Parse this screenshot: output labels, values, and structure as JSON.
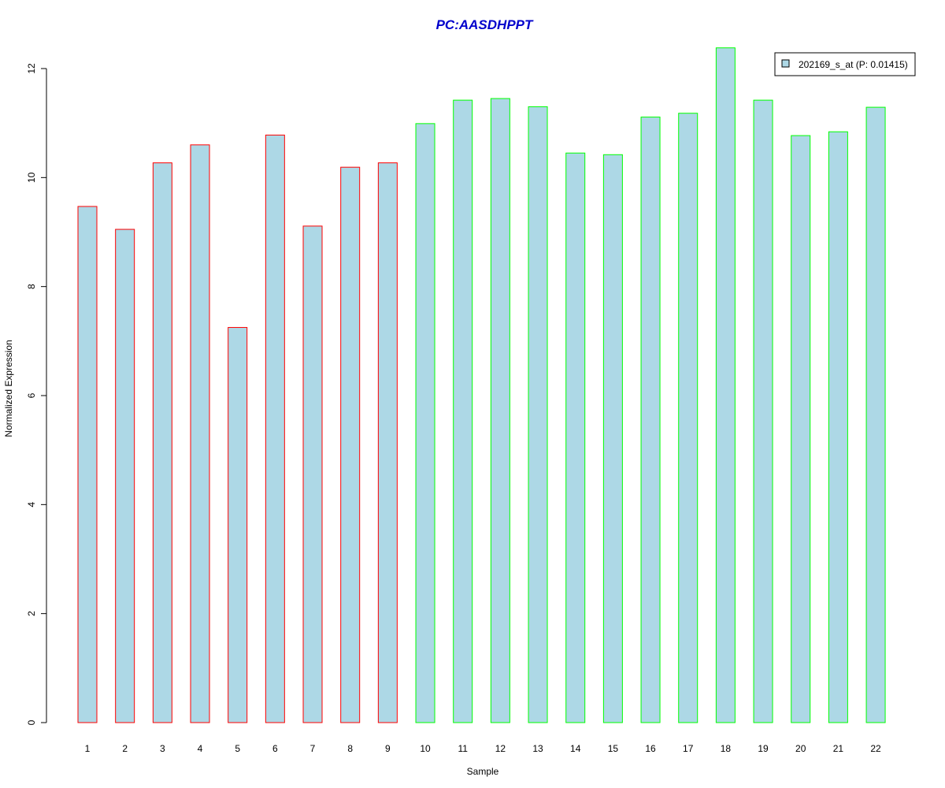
{
  "chart_data": {
    "type": "bar",
    "title": "PC:AASDHPPT",
    "xlabel": "Sample",
    "ylabel": "Normalized Expression",
    "categories": [
      "1",
      "2",
      "3",
      "4",
      "5",
      "6",
      "7",
      "8",
      "9",
      "10",
      "11",
      "12",
      "13",
      "14",
      "15",
      "16",
      "17",
      "18",
      "19",
      "20",
      "21",
      "22"
    ],
    "series": [
      {
        "name": "202169_s_at (P: 0.01415)",
        "values": [
          9.47,
          9.05,
          10.27,
          10.6,
          7.25,
          10.78,
          9.11,
          10.19,
          10.27,
          10.99,
          11.42,
          11.45,
          11.3,
          10.45,
          10.42,
          11.11,
          11.18,
          12.38,
          11.42,
          10.77,
          10.84,
          11.29
        ]
      }
    ],
    "group_border_colors": [
      "#ff0000",
      "#ff0000",
      "#ff0000",
      "#ff0000",
      "#ff0000",
      "#ff0000",
      "#ff0000",
      "#ff0000",
      "#ff0000",
      "#00ff00",
      "#00ff00",
      "#00ff00",
      "#00ff00",
      "#00ff00",
      "#00ff00",
      "#00ff00",
      "#00ff00",
      "#00ff00",
      "#00ff00",
      "#00ff00",
      "#00ff00",
      "#00ff00"
    ],
    "ylim": [
      0,
      12
    ],
    "yticks": [
      0,
      2,
      4,
      6,
      8,
      10,
      12
    ],
    "grid": false,
    "legend_position": "top-right",
    "colors": {
      "bar_fill": "#add8e6",
      "title": "#0000cc",
      "axis": "#000000"
    }
  }
}
